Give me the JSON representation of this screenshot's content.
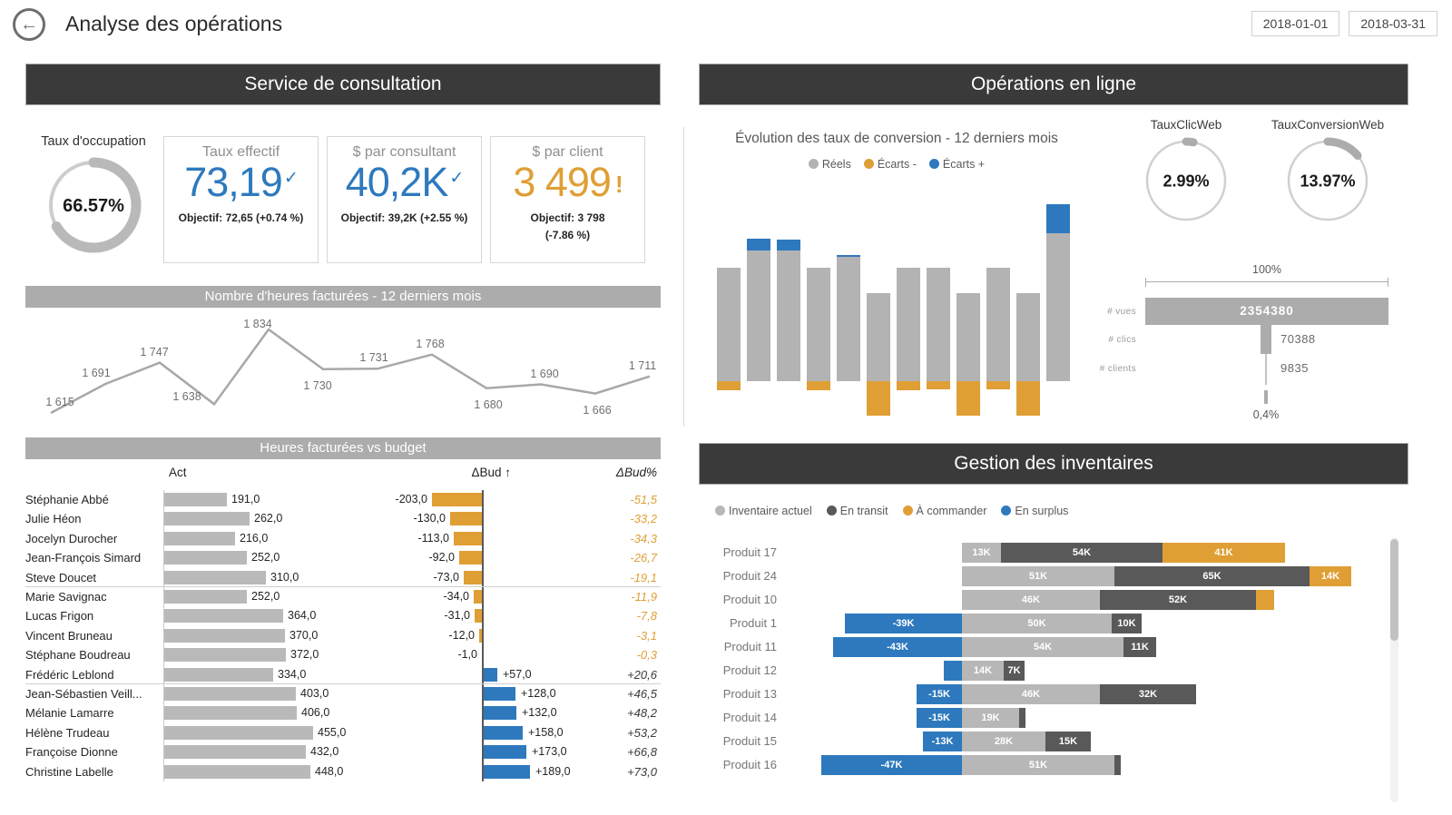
{
  "colors": {
    "blue": "#2E79BD",
    "orange": "#DF9F35",
    "bar_gray": "#B9B9B9",
    "conv_gray": "#B3B3B3",
    "inv_light": "#B7B7B7",
    "inv_dark": "#595959",
    "banner_dark": "#3A3A3A",
    "banner_gray": "#ACACAC"
  },
  "icons": {
    "back": "←",
    "check": "✓",
    "alert": "!"
  },
  "header": {
    "title": "Analyse des opérations",
    "date_from": "2018-01-01",
    "date_to": "2018-03-31"
  },
  "consultation": {
    "banner": "Service de consultation",
    "occupancy_gauge": {
      "label": "Taux d'occupation",
      "value": "66.57%",
      "percent": 66.57
    },
    "kpi_cards": [
      {
        "title": "Taux effectif",
        "value": "73,19",
        "status": "check",
        "objective_line1": "Objectif: 72,65 (+0.74 %)",
        "objective_line2": ""
      },
      {
        "title": "$ par consultant",
        "value": "40,2K",
        "status": "check",
        "objective_line1": "Objectif: 39,2K (+2.55 %)",
        "objective_line2": ""
      },
      {
        "title": "$ par client",
        "value": "3 499",
        "status": "alert",
        "objective_line1": "Objectif: 3 798",
        "objective_line2": "(-7.86 %)"
      }
    ],
    "hours_banner": "Nombre d'heures facturées - 12 derniers mois",
    "budget_banner": "Heures facturées vs budget",
    "table": {
      "headers": [
        "Act",
        "ΔBud ↑",
        "ΔBud%"
      ],
      "rows": [
        [
          "Stéphanie Abbé",
          "191,0",
          "-203,0",
          "-51,5"
        ],
        [
          "Julie Héon",
          "262,0",
          "-130,0",
          "-33,2"
        ],
        [
          "Jocelyn Durocher",
          "216,0",
          "-113,0",
          "-34,3"
        ],
        [
          "Jean-François Simard",
          "252,0",
          "-92,0",
          "-26,7"
        ],
        [
          "Steve Doucet",
          "310,0",
          "-73,0",
          "-19,1"
        ],
        [
          "Marie Savignac",
          "252,0",
          "-34,0",
          "-11,9"
        ],
        [
          "Lucas Frigon",
          "364,0",
          "-31,0",
          "-7,8"
        ],
        [
          "Vincent Bruneau",
          "370,0",
          "-12,0",
          "-3,1"
        ],
        [
          "Stéphane Boudreau",
          "372,0",
          "-1,0",
          "-0,3"
        ],
        [
          "Frédéric Leblond",
          "334,0",
          "+57,0",
          "+20,6"
        ],
        [
          "Jean-Sébastien Veill...",
          "403,0",
          "+128,0",
          "+46,5"
        ],
        [
          "Mélanie Lamarre",
          "406,0",
          "+132,0",
          "+48,2"
        ],
        [
          "Hélène Trudeau",
          "455,0",
          "+158,0",
          "+53,2"
        ],
        [
          "Françoise Dionne",
          "432,0",
          "+173,0",
          "+66,8"
        ],
        [
          "Christine Labelle",
          "448,0",
          "+189,0",
          "+73,0"
        ]
      ]
    }
  },
  "online": {
    "banner": "Opérations en ligne",
    "conversion_title": "Évolution des taux de conversion - 12 derniers mois",
    "gauges": [
      {
        "label": "TauxClicWeb",
        "value": "2.99%",
        "percent": 2.99
      },
      {
        "label": "TauxConversionWeb",
        "value": "13.97%",
        "percent": 13.97
      }
    ],
    "funnel": {
      "top_label": "100%",
      "vues_label": "# vues",
      "vues_value": "2354380",
      "clics_label": "# clics",
      "clics_value": "70388",
      "clients_label": "# clients",
      "clients_value": "9835",
      "bottom_label": "0,4%"
    }
  },
  "inventory": {
    "banner": "Gestion des inventaires"
  },
  "chart_data": [
    {
      "id": "hours",
      "type": "line",
      "title": "Nombre d'heures facturées - 12 derniers mois",
      "values": [
        1615,
        1691,
        1747,
        1638,
        1834,
        1730,
        1731,
        1768,
        1680,
        1690,
        1666,
        1711
      ],
      "labels": [
        "1 615",
        "1 691",
        "1 747",
        "1 638",
        "1 834",
        "1 730",
        "1 731",
        "1 768",
        "1 680",
        "1 690",
        "1 666",
        "1 711"
      ]
    },
    {
      "id": "conversion",
      "type": "bar",
      "title": "Évolution des taux de conversion - 12 derniers mois",
      "legend": [
        "Réels",
        "Écarts -",
        "Écarts +"
      ],
      "reels_rel": [
        125,
        144,
        144,
        125,
        137,
        97,
        125,
        125,
        97,
        125,
        97,
        163
      ],
      "ecart_plus_rel": [
        0,
        13,
        12,
        0,
        2,
        0,
        0,
        0,
        0,
        0,
        0,
        32
      ],
      "ecart_minus_rel": [
        10,
        0,
        0,
        10,
        0,
        38,
        10,
        9,
        38,
        9,
        38,
        0
      ]
    },
    {
      "id": "inventory",
      "type": "bar",
      "title": "Gestion des inventaires",
      "legend": [
        "Inventaire actuel",
        "En transit",
        "À commander",
        "En surplus"
      ],
      "unit": "K",
      "rows": [
        {
          "name": "Produit 17",
          "surplus": 0,
          "actuel": 13,
          "transit": 54,
          "commander": 41,
          "labels": {
            "surplus": "",
            "actuel": "13K",
            "transit": "54K",
            "commander": "41K"
          }
        },
        {
          "name": "Produit 24",
          "surplus": 0,
          "actuel": 51,
          "transit": 65,
          "commander": 14,
          "labels": {
            "surplus": "",
            "actuel": "51K",
            "transit": "65K",
            "commander": "14K"
          }
        },
        {
          "name": "Produit 10",
          "surplus": 0,
          "actuel": 46,
          "transit": 52,
          "commander": 6,
          "labels": {
            "surplus": "",
            "actuel": "46K",
            "transit": "52K",
            "commander": ""
          }
        },
        {
          "name": "Produit 1",
          "surplus": 39,
          "actuel": 50,
          "transit": 10,
          "commander": 0,
          "labels": {
            "surplus": "-39K",
            "actuel": "50K",
            "transit": "10K",
            "commander": ""
          }
        },
        {
          "name": "Produit 11",
          "surplus": 43,
          "actuel": 54,
          "transit": 11,
          "commander": 0,
          "labels": {
            "surplus": "-43K",
            "actuel": "54K",
            "transit": "11K",
            "commander": ""
          }
        },
        {
          "name": "Produit 12",
          "surplus": 6,
          "actuel": 14,
          "transit": 7,
          "commander": 0,
          "labels": {
            "surplus": "",
            "actuel": "14K",
            "transit": "7K",
            "commander": ""
          }
        },
        {
          "name": "Produit 13",
          "surplus": 15,
          "actuel": 46,
          "transit": 32,
          "commander": 0,
          "labels": {
            "surplus": "-15K",
            "actuel": "46K",
            "transit": "32K",
            "commander": ""
          }
        },
        {
          "name": "Produit 14",
          "surplus": 15,
          "actuel": 19,
          "transit": 2,
          "commander": 0,
          "labels": {
            "surplus": "-15K",
            "actuel": "19K",
            "transit": "",
            "commander": ""
          }
        },
        {
          "name": "Produit 15",
          "surplus": 13,
          "actuel": 28,
          "transit": 15,
          "commander": 0,
          "labels": {
            "surplus": "-13K",
            "actuel": "28K",
            "transit": "15K",
            "commander": ""
          }
        },
        {
          "name": "Produit 16",
          "surplus": 47,
          "actuel": 51,
          "transit": 2,
          "commander": 0,
          "labels": {
            "surplus": "-47K",
            "actuel": "51K",
            "transit": "",
            "commander": ""
          }
        }
      ]
    }
  ]
}
